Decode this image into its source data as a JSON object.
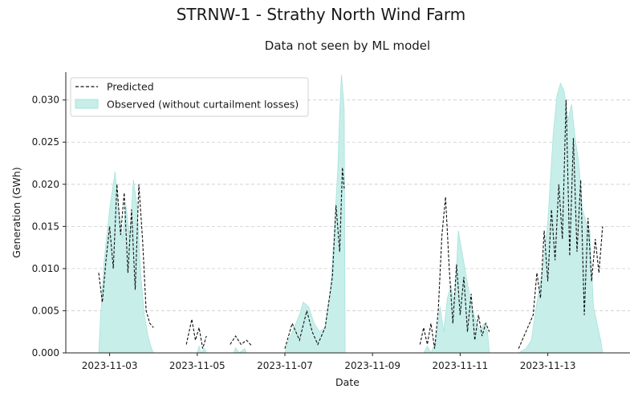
{
  "chart_data": {
    "type": "area",
    "title": "STRNW-1 - Strathy North Wind Farm",
    "subtitle": "Data not seen by ML model",
    "xlabel": "Date",
    "ylabel": "Generation (GWh)",
    "xlim": [
      "2023-11-02T00:00",
      "2023-11-14T21:00"
    ],
    "ylim": [
      0,
      0.0333
    ],
    "x_ticks": [
      "2023-11-03",
      "2023-11-05",
      "2023-11-07",
      "2023-11-09",
      "2023-11-11",
      "2023-11-13"
    ],
    "y_ticks": [
      0.0,
      0.005,
      0.01,
      0.015,
      0.02,
      0.025,
      0.03
    ],
    "y_tick_labels": [
      "0.000",
      "0.005",
      "0.010",
      "0.015",
      "0.020",
      "0.025",
      "0.030"
    ],
    "grid": "horizontal dashed",
    "legend_position": "top-left",
    "colors": {
      "observed_fill": "#c8eeea",
      "observed_edge": "#a6e3dd",
      "predicted": "#111111",
      "grid": "#cccccc"
    },
    "series": [
      {
        "name": "Predicted",
        "style": "dashed line",
        "segments": [
          [
            [
              "2023-11-02T18:00",
              0.0095
            ],
            [
              "2023-11-02T20:00",
              0.006
            ],
            [
              "2023-11-02T22:00",
              0.011
            ],
            [
              "2023-11-03T00:00",
              0.015
            ],
            [
              "2023-11-03T02:00",
              0.01
            ],
            [
              "2023-11-03T04:00",
              0.02
            ],
            [
              "2023-11-03T06:00",
              0.014
            ],
            [
              "2023-11-03T08:00",
              0.019
            ],
            [
              "2023-11-03T10:00",
              0.0095
            ],
            [
              "2023-11-03T12:00",
              0.017
            ],
            [
              "2023-11-03T14:00",
              0.0075
            ],
            [
              "2023-11-03T16:00",
              0.02
            ],
            [
              "2023-11-03T18:00",
              0.0135
            ],
            [
              "2023-11-03T20:00",
              0.005
            ],
            [
              "2023-11-03T22:00",
              0.0035
            ],
            [
              "2023-11-04T00:00",
              0.003
            ]
          ],
          [
            [
              "2023-11-04T18:00",
              0.001
            ],
            [
              "2023-11-04T21:00",
              0.004
            ],
            [
              "2023-11-04T23:00",
              0.0015
            ],
            [
              "2023-11-05T01:00",
              0.003
            ],
            [
              "2023-11-05T03:00",
              0.0005
            ],
            [
              "2023-11-05T05:00",
              0.002
            ]
          ],
          [
            [
              "2023-11-05T18:00",
              0.001
            ],
            [
              "2023-11-05T21:00",
              0.002
            ],
            [
              "2023-11-06T00:00",
              0.001
            ],
            [
              "2023-11-06T03:00",
              0.0015
            ],
            [
              "2023-11-06T06:00",
              0.0008
            ]
          ],
          [
            [
              "2023-11-07T00:00",
              0.0005
            ],
            [
              "2023-11-07T04:00",
              0.0035
            ],
            [
              "2023-11-07T08:00",
              0.0015
            ],
            [
              "2023-11-07T12:00",
              0.005
            ],
            [
              "2023-11-07T15:00",
              0.0025
            ],
            [
              "2023-11-07T18:00",
              0.001
            ],
            [
              "2023-11-07T22:00",
              0.003
            ],
            [
              "2023-11-08T02:00",
              0.009
            ],
            [
              "2023-11-08T04:00",
              0.0175
            ],
            [
              "2023-11-08T06:00",
              0.012
            ],
            [
              "2023-11-08T07:30",
              0.022
            ],
            [
              "2023-11-08T08:30",
              0.0195
            ]
          ],
          [
            [
              "2023-11-10T02:00",
              0.001
            ],
            [
              "2023-11-10T04:00",
              0.003
            ],
            [
              "2023-11-10T06:00",
              0.001
            ],
            [
              "2023-11-10T08:00",
              0.0035
            ],
            [
              "2023-11-10T10:00",
              0.0005
            ],
            [
              "2023-11-10T12:00",
              0.005
            ],
            [
              "2023-11-10T14:00",
              0.014
            ],
            [
              "2023-11-10T16:00",
              0.0185
            ],
            [
              "2023-11-10T18:00",
              0.01
            ],
            [
              "2023-11-10T20:00",
              0.0035
            ],
            [
              "2023-11-10T22:00",
              0.0105
            ],
            [
              "2023-11-11T00:00",
              0.0045
            ],
            [
              "2023-11-11T02:00",
              0.009
            ],
            [
              "2023-11-11T04:00",
              0.0025
            ],
            [
              "2023-11-11T06:00",
              0.007
            ],
            [
              "2023-11-11T08:00",
              0.0015
            ],
            [
              "2023-11-11T10:00",
              0.0045
            ],
            [
              "2023-11-11T12:00",
              0.002
            ],
            [
              "2023-11-11T14:00",
              0.0035
            ],
            [
              "2023-11-11T16:00",
              0.0025
            ]
          ],
          [
            [
              "2023-11-12T08:00",
              0.0005
            ],
            [
              "2023-11-12T12:00",
              0.0025
            ],
            [
              "2023-11-12T16:00",
              0.0045
            ],
            [
              "2023-11-12T18:00",
              0.0095
            ],
            [
              "2023-11-12T20:00",
              0.0065
            ],
            [
              "2023-11-12T22:00",
              0.0145
            ],
            [
              "2023-11-13T00:00",
              0.0085
            ],
            [
              "2023-11-13T02:00",
              0.017
            ],
            [
              "2023-11-13T04:00",
              0.011
            ],
            [
              "2023-11-13T06:00",
              0.02
            ],
            [
              "2023-11-13T08:00",
              0.0135
            ],
            [
              "2023-11-13T10:00",
              0.03
            ],
            [
              "2023-11-13T12:00",
              0.0115
            ],
            [
              "2023-11-13T14:00",
              0.0255
            ],
            [
              "2023-11-13T16:00",
              0.012
            ],
            [
              "2023-11-13T18:00",
              0.0205
            ],
            [
              "2023-11-13T20:00",
              0.0045
            ],
            [
              "2023-11-13T22:00",
              0.016
            ],
            [
              "2023-11-14T00:00",
              0.0085
            ],
            [
              "2023-11-14T02:00",
              0.0135
            ],
            [
              "2023-11-14T04:00",
              0.0095
            ],
            [
              "2023-11-14T06:00",
              0.015
            ]
          ]
        ]
      },
      {
        "name": "Observed (without curtailment losses)",
        "style": "filled area",
        "segments": [
          [
            [
              "2023-11-02T18:00",
              0.0
            ],
            [
              "2023-11-02T19:00",
              0.004
            ],
            [
              "2023-11-02T21:00",
              0.011
            ],
            [
              "2023-11-03T00:00",
              0.017
            ],
            [
              "2023-11-03T03:00",
              0.0215
            ],
            [
              "2023-11-03T05:00",
              0.017
            ],
            [
              "2023-11-03T07:00",
              0.0135
            ],
            [
              "2023-11-03T09:00",
              0.0175
            ],
            [
              "2023-11-03T11:00",
              0.0135
            ],
            [
              "2023-11-03T13:00",
              0.0205
            ],
            [
              "2023-11-03T15:00",
              0.0175
            ],
            [
              "2023-11-03T17:00",
              0.0095
            ],
            [
              "2023-11-03T19:00",
              0.0045
            ],
            [
              "2023-11-03T21:00",
              0.002
            ],
            [
              "2023-11-03T23:00",
              0.0005
            ],
            [
              "2023-11-04T00:00",
              0.0
            ]
          ],
          [
            [
              "2023-11-05T00:00",
              0.0
            ],
            [
              "2023-11-05T01:00",
              0.0008
            ],
            [
              "2023-11-05T02:00",
              0.0
            ],
            [
              "2023-11-05T04:00",
              0.0005
            ],
            [
              "2023-11-05T05:00",
              0.0
            ]
          ],
          [
            [
              "2023-11-05T20:00",
              0.0
            ],
            [
              "2023-11-05T21:00",
              0.0006
            ],
            [
              "2023-11-05T23:00",
              0.0
            ],
            [
              "2023-11-06T02:00",
              0.0005
            ],
            [
              "2023-11-06T03:00",
              0.0
            ]
          ],
          [
            [
              "2023-11-07T00:00",
              0.0
            ],
            [
              "2023-11-07T02:00",
              0.0015
            ],
            [
              "2023-11-07T05:00",
              0.003
            ],
            [
              "2023-11-07T08:00",
              0.0045
            ],
            [
              "2023-11-07T10:00",
              0.006
            ],
            [
              "2023-11-07T13:00",
              0.0055
            ],
            [
              "2023-11-07T16:00",
              0.0035
            ],
            [
              "2023-11-07T19:00",
              0.0025
            ],
            [
              "2023-11-07T22:00",
              0.003
            ],
            [
              "2023-11-08T01:00",
              0.0075
            ],
            [
              "2023-11-08T03:00",
              0.014
            ],
            [
              "2023-11-08T05:00",
              0.022
            ],
            [
              "2023-11-08T06:00",
              0.0285
            ],
            [
              "2023-11-08T07:00",
              0.033
            ],
            [
              "2023-11-08T08:30",
              0.029
            ],
            [
              "2023-11-08T09:00",
              0.0
            ]
          ],
          [
            [
              "2023-11-10T04:00",
              0.0
            ],
            [
              "2023-11-10T06:00",
              0.0008
            ],
            [
              "2023-11-10T08:00",
              0.0
            ],
            [
              "2023-11-10T11:00",
              0.0015
            ],
            [
              "2023-11-10T13:00",
              0.0055
            ],
            [
              "2023-11-10T15:00",
              0.0025
            ],
            [
              "2023-11-10T17:00",
              0.0065
            ],
            [
              "2023-11-10T19:00",
              0.008
            ],
            [
              "2023-11-10T21:00",
              0.0055
            ],
            [
              "2023-11-10T23:00",
              0.0145
            ],
            [
              "2023-11-11T01:00",
              0.012
            ],
            [
              "2023-11-11T03:00",
              0.0095
            ],
            [
              "2023-11-11T05:00",
              0.007
            ],
            [
              "2023-11-11T07:00",
              0.005
            ],
            [
              "2023-11-11T09:00",
              0.0035
            ],
            [
              "2023-11-11T11:00",
              0.0025
            ],
            [
              "2023-11-11T13:00",
              0.0035
            ],
            [
              "2023-11-11T15:00",
              0.0025
            ],
            [
              "2023-11-11T16:00",
              0.0
            ]
          ],
          [
            [
              "2023-11-12T08:00",
              0.0
            ],
            [
              "2023-11-12T12:00",
              0.0005
            ],
            [
              "2023-11-12T15:00",
              0.0015
            ],
            [
              "2023-11-12T18:00",
              0.006
            ],
            [
              "2023-11-12T21:00",
              0.0095
            ],
            [
              "2023-11-13T00:00",
              0.0155
            ],
            [
              "2023-11-13T03:00",
              0.026
            ],
            [
              "2023-11-13T05:00",
              0.0305
            ],
            [
              "2023-11-13T07:00",
              0.032
            ],
            [
              "2023-11-13T09:00",
              0.031
            ],
            [
              "2023-11-13T11:00",
              0.0275
            ],
            [
              "2023-11-13T13:00",
              0.0295
            ],
            [
              "2023-11-13T15:00",
              0.0255
            ],
            [
              "2023-11-13T17:00",
              0.0225
            ],
            [
              "2023-11-13T19:00",
              0.017
            ],
            [
              "2023-11-13T21:00",
              0.0155
            ],
            [
              "2023-11-13T23:00",
              0.0145
            ],
            [
              "2023-11-14T01:00",
              0.0055
            ],
            [
              "2023-11-14T03:00",
              0.0035
            ],
            [
              "2023-11-14T05:00",
              0.0015
            ],
            [
              "2023-11-14T06:00",
              0.0
            ]
          ]
        ]
      }
    ]
  }
}
